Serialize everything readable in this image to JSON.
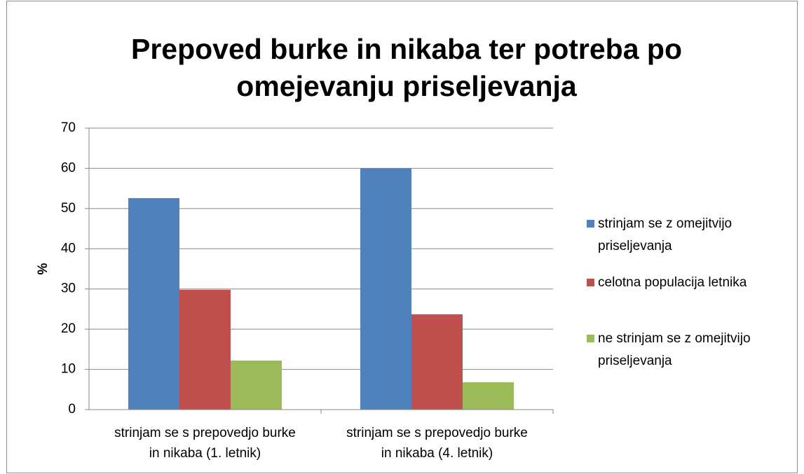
{
  "chart_data": {
    "type": "bar",
    "title": "Prepoved burke in nikaba ter potreba po omejevanju priseljevanja",
    "y_label": "%",
    "categories": [
      "strinjam se s prepovedjo burke in nikaba (1. letnik)",
      "strinjam se s prepovedjo burke in nikaba (4. letnik)"
    ],
    "series": [
      {
        "name": "strinjam se z omejitvijo priseljevanja",
        "color": "#4f81bd",
        "values": [
          52.6,
          60
        ]
      },
      {
        "name": "celotna populacija letnika",
        "color": "#c0504d",
        "values": [
          29.8,
          23.7
        ]
      },
      {
        "name": "ne strinjam se z omejitvijo priseljevanja",
        "color": "#9bbb59",
        "values": [
          12.2,
          6.8
        ]
      }
    ],
    "ylim": [
      0,
      70
    ],
    "yticks": [
      0,
      10,
      20,
      30,
      40,
      50,
      60,
      70
    ],
    "grid": true,
    "legend": "right"
  }
}
